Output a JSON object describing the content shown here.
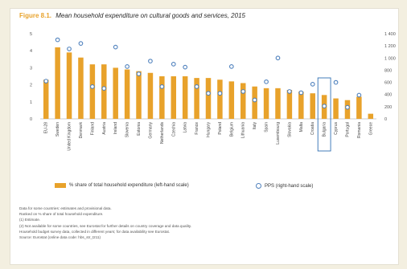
{
  "figure": {
    "label": "Figure 8.1.",
    "title": "Mean household expenditure on cultural goods and services, 2015"
  },
  "chart_data": {
    "type": "bar",
    "title": "Mean household expenditure on cultural goods and services, 2015",
    "categories": [
      "EU-28",
      "Sweden",
      "United Kingdom",
      "Denmark",
      "Finland",
      "Austria",
      "Ireland",
      "Slovenia",
      "Estonia",
      "Germany",
      "Netherlands",
      "Czechia",
      "Latvia",
      "France",
      "Hungary",
      "Poland",
      "Belgium",
      "Lithuania",
      "Italy",
      "Spain",
      "Luxembourg",
      "Slovakia",
      "Malta",
      "Croatia",
      "Bulgaria",
      "Cyprus",
      "Portugal",
      "Romania",
      "Greece"
    ],
    "y_left_ticks": [
      "0",
      "1",
      "2",
      "3",
      "4",
      "5"
    ],
    "y_right_ticks": [
      "0",
      "200",
      "400",
      "600",
      "800",
      "1 000",
      "1 200",
      "1 400"
    ],
    "ylim_left": [
      0,
      5
    ],
    "ylim_right": [
      0,
      1400
    ],
    "series": [
      {
        "name": "% share of total household expenditure (left-hand scale)",
        "kind": "bar",
        "axis": "left",
        "color": "#e8a22b",
        "values": [
          2.3,
          4.2,
          3.9,
          3.6,
          3.2,
          3.2,
          3.0,
          2.9,
          2.8,
          2.7,
          2.5,
          2.5,
          2.5,
          2.4,
          2.4,
          2.3,
          2.2,
          2.1,
          1.9,
          1.8,
          1.8,
          1.7,
          1.6,
          1.5,
          1.4,
          1.2,
          1.1,
          1.3,
          0.3
        ]
      },
      {
        "name": "PPS (right-hand scale)",
        "kind": "marker",
        "axis": "right",
        "color": "#4f81bd",
        "values": [
          620,
          1300,
          1150,
          1240,
          530,
          500,
          1180,
          860,
          740,
          950,
          530,
          900,
          850,
          530,
          420,
          420,
          860,
          450,
          310,
          610,
          1000,
          450,
          430,
          570,
          210,
          600,
          190,
          390,
          null
        ]
      }
    ],
    "highlight_category": "Bulgaria",
    "legend_position": "bottom",
    "grid": false
  },
  "notes": [
    "Data for some countries: estimates and provisional data.",
    "Ranked on % share of total household expenditure.",
    "(1) Estimate.",
    "(2) Not available for some countries, see Eurostat for further details on country coverage and data quality.",
    "Household budget survey data, collected in different years; for data availability see Eurostat.",
    "Source: Eurostat (online data code: hbs_str_t211)"
  ]
}
